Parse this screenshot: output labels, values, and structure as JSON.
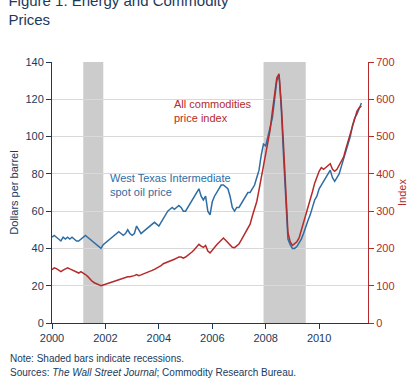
{
  "chart_data": {
    "type": "line",
    "title": "Figure 1. Energy and Commodity\nPrices",
    "color": "#1a3a5c",
    "ylabel": "Dollars per barrel",
    "y2label": "Index",
    "xlim": [
      2000.0,
      2011.83
    ],
    "ylim": [
      0,
      140
    ],
    "y2lim": [
      0,
      700
    ],
    "xticks": [
      2000,
      2002,
      2004,
      2006,
      2008,
      2010
    ],
    "yticks": [
      0,
      20,
      40,
      60,
      80,
      100,
      120,
      140
    ],
    "y2ticks": [
      0,
      100,
      200,
      300,
      400,
      500,
      600,
      700
    ],
    "grid": true,
    "recession_bands": [
      [
        2001.17,
        2001.92
      ],
      [
        2007.92,
        2009.5
      ]
    ],
    "recession_color": "#cccccc",
    "x": [
      2000.0,
      2000.083333,
      2000.166667,
      2000.25,
      2000.333333,
      2000.416667,
      2000.5,
      2000.583333,
      2000.666667,
      2000.75,
      2000.833333,
      2000.916667,
      2001.0,
      2001.083333,
      2001.166667,
      2001.25,
      2001.333333,
      2001.416667,
      2001.5,
      2001.583333,
      2001.666667,
      2001.75,
      2001.833333,
      2001.916667,
      2002.0,
      2002.083333,
      2002.166667,
      2002.25,
      2002.333333,
      2002.416667,
      2002.5,
      2002.583333,
      2002.666667,
      2002.75,
      2002.833333,
      2002.916667,
      2003.0,
      2003.083333,
      2003.166667,
      2003.25,
      2003.333333,
      2003.416667,
      2003.5,
      2003.583333,
      2003.666667,
      2003.75,
      2003.833333,
      2003.916667,
      2004.0,
      2004.083333,
      2004.166667,
      2004.25,
      2004.333333,
      2004.416667,
      2004.5,
      2004.583333,
      2004.666667,
      2004.75,
      2004.833333,
      2004.916667,
      2005.0,
      2005.083333,
      2005.166667,
      2005.25,
      2005.333333,
      2005.416667,
      2005.5,
      2005.583333,
      2005.666667,
      2005.75,
      2005.833333,
      2005.916667,
      2006.0,
      2006.083333,
      2006.166667,
      2006.25,
      2006.333333,
      2006.416667,
      2006.5,
      2006.583333,
      2006.666667,
      2006.75,
      2006.833333,
      2006.916667,
      2007.0,
      2007.083333,
      2007.166667,
      2007.25,
      2007.333333,
      2007.416667,
      2007.5,
      2007.583333,
      2007.666667,
      2007.75,
      2007.833333,
      2007.916667,
      2008.0,
      2008.083333,
      2008.166667,
      2008.25,
      2008.333333,
      2008.416667,
      2008.5,
      2008.583333,
      2008.666667,
      2008.75,
      2008.833333,
      2008.916667,
      2009.0,
      2009.083333,
      2009.166667,
      2009.25,
      2009.333333,
      2009.416667,
      2009.5,
      2009.583333,
      2009.666667,
      2009.75,
      2009.833333,
      2009.916667,
      2010.0,
      2010.083333,
      2010.166667,
      2010.25,
      2010.333333,
      2010.416667,
      2010.5,
      2010.583333,
      2010.666667,
      2010.75,
      2010.833333,
      2010.916667,
      2011.0,
      2011.083333,
      2011.166667,
      2011.25,
      2011.333333,
      2011.416667,
      2011.5,
      2011.583333
    ],
    "series": [
      {
        "color": "#2e6da4",
        "values": [
          46,
          47,
          46,
          45,
          44,
          46,
          45,
          46,
          45,
          46,
          45,
          44,
          44,
          45,
          46,
          47,
          46,
          45,
          44,
          43,
          42,
          41,
          40,
          42,
          43,
          44,
          45,
          46,
          47,
          48,
          49,
          48,
          47,
          48,
          50,
          48,
          47,
          48,
          52,
          50,
          48,
          49,
          50,
          51,
          52,
          53,
          54,
          53,
          52,
          54,
          56,
          58,
          60,
          61,
          62,
          61,
          62,
          63,
          62,
          60,
          60,
          62,
          64,
          66,
          68,
          70,
          72,
          68,
          66,
          68,
          60,
          58,
          65,
          68,
          70,
          72,
          74,
          74,
          73,
          72,
          68,
          62,
          60,
          62,
          62,
          64,
          66,
          68,
          70,
          70,
          72,
          74,
          78,
          82,
          90,
          96,
          95,
          100,
          105,
          110,
          120,
          130,
          133,
          115,
          90,
          65,
          45,
          42,
          40,
          40,
          41,
          43,
          45,
          48,
          52,
          55,
          58,
          62,
          66,
          68,
          72,
          74,
          76,
          78,
          80,
          82,
          78,
          76,
          78,
          80,
          84,
          88,
          92,
          96,
          100,
          106,
          110,
          112,
          115,
          118
        ]
      },
      {
        "color": "#b52a2a",
        "axis": "y2",
        "values": [
          143,
          148,
          146,
          142,
          138,
          142,
          145,
          148,
          145,
          142,
          138,
          136,
          134,
          138,
          135,
          130,
          125,
          118,
          112,
          108,
          105,
          103,
          100,
          102,
          104,
          106,
          108,
          110,
          112,
          115,
          117,
          117,
          119,
          121,
          124,
          124,
          125,
          127,
          130,
          127,
          129,
          131,
          134,
          137,
          139,
          141,
          144,
          147,
          149,
          154,
          159,
          161,
          164,
          167,
          169,
          171,
          174,
          177,
          177,
          174,
          177,
          181,
          187,
          191,
          197,
          204,
          211,
          206,
          203,
          208,
          193,
          188,
          196,
          203,
          210,
          216,
          222,
          228,
          222,
          215,
          208,
          203,
          202,
          208,
          212,
          222,
          232,
          245,
          255,
          265,
          287,
          307,
          326,
          357,
          388,
          428,
          458,
          488,
          518,
          568,
          618,
          658,
          668,
          587,
          477,
          368,
          242,
          218,
          208,
          213,
          218,
          228,
          248,
          266,
          288,
          307,
          328,
          352,
          375,
          392,
          407,
          417,
          412,
          417,
          422,
          427,
          412,
          407,
          412,
          422,
          432,
          445,
          467,
          487,
          507,
          532,
          552,
          568,
          577,
          582
        ]
      }
    ],
    "annotations": [
      {
        "text": "West Texas Intermediate\nspot oil price",
        "x": 2002.1,
        "y": 82,
        "color": "#2e6da4"
      },
      {
        "text": "All commodities\nprice index",
        "x": 2004.5,
        "y": 122,
        "color": "#b52a2a"
      }
    ],
    "notes": [
      [
        {
          "text": "Note: Shaded bars indicate recessions."
        }
      ],
      [
        {
          "text": "Sources: "
        },
        {
          "text": "The Wall Street Journal",
          "italic": true
        },
        {
          "text": "; Commodity Research Bureau."
        }
      ]
    ]
  }
}
